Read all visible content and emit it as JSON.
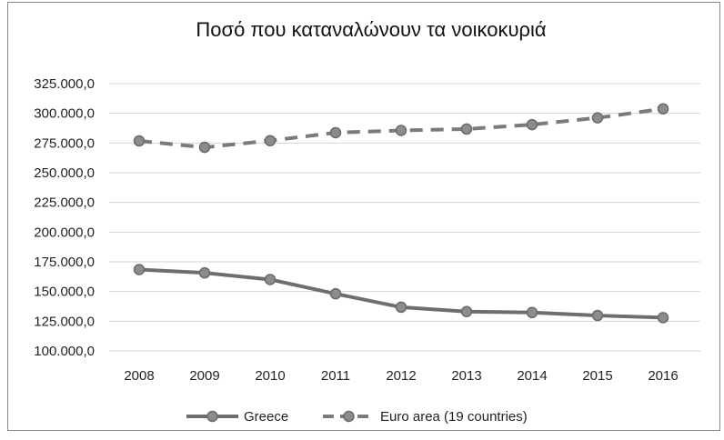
{
  "chart_data": {
    "type": "line",
    "title": "Ποσό που καταναλώνουν τα νοικοκυριά",
    "xlabel": "",
    "ylabel": "",
    "categories": [
      "2008",
      "2009",
      "2010",
      "2011",
      "2012",
      "2013",
      "2014",
      "2015",
      "2016"
    ],
    "ylim": [
      100000,
      325000
    ],
    "yticks": [
      {
        "value": 100000,
        "label": "100.000,0"
      },
      {
        "value": 125000,
        "label": "125.000,0"
      },
      {
        "value": 150000,
        "label": "150.000,0"
      },
      {
        "value": 175000,
        "label": "175.000,0"
      },
      {
        "value": 200000,
        "label": "200.000,0"
      },
      {
        "value": 225000,
        "label": "225.000,0"
      },
      {
        "value": 250000,
        "label": "250.000,0"
      },
      {
        "value": 275000,
        "label": "275.000,0"
      },
      {
        "value": 300000,
        "label": "300.000,0"
      },
      {
        "value": 325000,
        "label": "325.000,0"
      }
    ],
    "grid": true,
    "legend_position": "bottom",
    "series": [
      {
        "name": "Greece",
        "style": "solid",
        "color": "#6e6e6e",
        "values": [
          168500,
          165700,
          160100,
          148100,
          136800,
          133100,
          132300,
          129800,
          128000
        ]
      },
      {
        "name": "Euro area (19 countries)",
        "style": "dashed",
        "color": "#7a7a7a",
        "values": [
          276800,
          271400,
          277000,
          283700,
          285600,
          286800,
          290500,
          296200,
          303800
        ]
      }
    ]
  }
}
